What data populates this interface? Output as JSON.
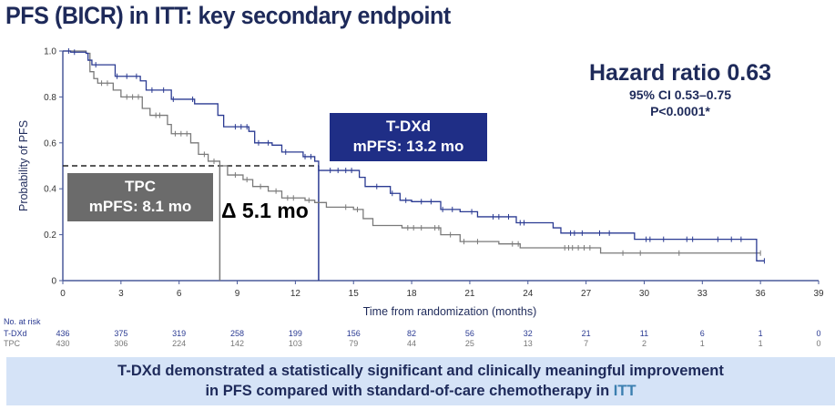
{
  "title": "PFS (BICR) in ITT: key secondary endpoint",
  "hazard": {
    "headline": "Hazard ratio 0.63",
    "ci": "95% CI 0.53–0.75",
    "p": "P<0.0001*"
  },
  "boxes": {
    "tdxd": {
      "line1": "T-DXd",
      "line2": "mPFS: 13.2 mo"
    },
    "tpc": {
      "line1": "TPC",
      "line2": "mPFS: 8.1 mo"
    },
    "delta": "Δ 5.1 mo"
  },
  "banner": {
    "line1": "T-DXd demonstrated a statistically significant and clinically meaningful improvement",
    "line2_prefix": "in PFS compared with standard-of-care chemotherapy in ",
    "line2_highlight": "ITT"
  },
  "at_risk": {
    "label": "No. at risk",
    "rows": [
      {
        "name": "T-DXd",
        "values": [
          436,
          375,
          319,
          258,
          199,
          156,
          82,
          56,
          32,
          21,
          11,
          6,
          1,
          0
        ]
      },
      {
        "name": "TPC",
        "values": [
          430,
          306,
          224,
          142,
          103,
          79,
          44,
          25,
          13,
          7,
          2,
          1,
          1,
          0
        ]
      }
    ]
  },
  "chart_data": {
    "type": "line",
    "subtype": "kaplan-meier step",
    "xlabel": "Time from randomization (months)",
    "ylabel": "Probability of PFS",
    "xlim": [
      0,
      39
    ],
    "ylim": [
      0,
      1.0
    ],
    "xticks": [
      0,
      3,
      6,
      9,
      12,
      15,
      18,
      21,
      24,
      27,
      30,
      33,
      36,
      39
    ],
    "yticks": [
      0,
      0.2,
      0.4,
      0.6,
      0.8,
      1.0
    ],
    "ytick_labels": [
      "0",
      "0.2",
      "0.4",
      "0.6",
      "0.8",
      "1.0"
    ],
    "grid": false,
    "median_reference": 0.5,
    "medians": {
      "T-DXd": 13.2,
      "TPC": 8.1
    },
    "series": [
      {
        "name": "T-DXd",
        "color": "#2a3a92",
        "steps": [
          [
            0,
            1.0
          ],
          [
            0.4,
            0.995
          ],
          [
            1.2,
            0.99
          ],
          [
            1.3,
            0.96
          ],
          [
            1.5,
            0.94
          ],
          [
            2.7,
            0.89
          ],
          [
            4.0,
            0.87
          ],
          [
            4.3,
            0.83
          ],
          [
            5.6,
            0.79
          ],
          [
            6.8,
            0.77
          ],
          [
            8.0,
            0.72
          ],
          [
            8.3,
            0.67
          ],
          [
            9.6,
            0.65
          ],
          [
            9.9,
            0.6
          ],
          [
            10.8,
            0.59
          ],
          [
            11.3,
            0.56
          ],
          [
            12.4,
            0.54
          ],
          [
            13.0,
            0.52
          ],
          [
            13.2,
            0.48
          ],
          [
            15.3,
            0.45
          ],
          [
            15.6,
            0.41
          ],
          [
            16.9,
            0.38
          ],
          [
            17.4,
            0.35
          ],
          [
            18.0,
            0.344
          ],
          [
            19.5,
            0.31
          ],
          [
            20.5,
            0.3
          ],
          [
            21.4,
            0.278
          ],
          [
            23.4,
            0.252
          ],
          [
            25.3,
            0.23
          ],
          [
            25.7,
            0.207
          ],
          [
            29.5,
            0.18
          ],
          [
            35.8,
            0.086
          ],
          [
            36.2,
            0.086
          ]
        ],
        "censored": [
          0.3,
          0.6,
          1.7,
          2.8,
          3.3,
          3.8,
          4.6,
          5.2,
          5.7,
          6.7,
          8.9,
          9.2,
          9.5,
          10.1,
          10.6,
          11.5,
          12.5,
          12.8,
          13.8,
          14.2,
          14.6,
          14.9,
          16.2,
          17.0,
          17.7,
          18.5,
          19.0,
          19.6,
          20.1,
          21.1,
          22.2,
          22.5,
          23.0,
          23.6,
          23.8,
          26.2,
          26.4,
          26.8,
          27.7,
          28.2,
          30.1,
          30.3,
          31.0,
          32.2,
          32.5,
          33.8,
          34.5,
          35.0,
          36.2
        ]
      },
      {
        "name": "TPC",
        "color": "#7a7a7a",
        "steps": [
          [
            0,
            1.0
          ],
          [
            1.2,
            0.99
          ],
          [
            1.4,
            0.91
          ],
          [
            1.6,
            0.88
          ],
          [
            1.8,
            0.86
          ],
          [
            2.6,
            0.83
          ],
          [
            3.0,
            0.8
          ],
          [
            4.1,
            0.75
          ],
          [
            4.5,
            0.72
          ],
          [
            5.4,
            0.68
          ],
          [
            5.6,
            0.64
          ],
          [
            6.6,
            0.6
          ],
          [
            7.0,
            0.55
          ],
          [
            7.5,
            0.52
          ],
          [
            8.1,
            0.5
          ],
          [
            8.5,
            0.46
          ],
          [
            9.3,
            0.44
          ],
          [
            9.8,
            0.41
          ],
          [
            10.6,
            0.39
          ],
          [
            11.3,
            0.36
          ],
          [
            12.5,
            0.35
          ],
          [
            13.0,
            0.34
          ],
          [
            13.6,
            0.32
          ],
          [
            15.0,
            0.31
          ],
          [
            15.5,
            0.27
          ],
          [
            16.0,
            0.24
          ],
          [
            17.5,
            0.23
          ],
          [
            19.5,
            0.2
          ],
          [
            20.5,
            0.17
          ],
          [
            22.5,
            0.16
          ],
          [
            23.6,
            0.143
          ],
          [
            27.75,
            0.12
          ],
          [
            36.0,
            0.12
          ]
        ],
        "censored": [
          2.0,
          2.3,
          3.3,
          3.6,
          3.9,
          4.8,
          5.0,
          5.8,
          6.1,
          6.4,
          7.3,
          7.8,
          8.9,
          9.5,
          10.2,
          11.0,
          11.6,
          11.9,
          12.7,
          14.6,
          15.2,
          17.8,
          18.1,
          18.5,
          19.2,
          19.4,
          20.0,
          20.7,
          21.4,
          23.2,
          23.5,
          25.9,
          26.1,
          26.3,
          26.6,
          26.9,
          27.2,
          28.9,
          29.8,
          31.8,
          36.0
        ]
      }
    ]
  }
}
